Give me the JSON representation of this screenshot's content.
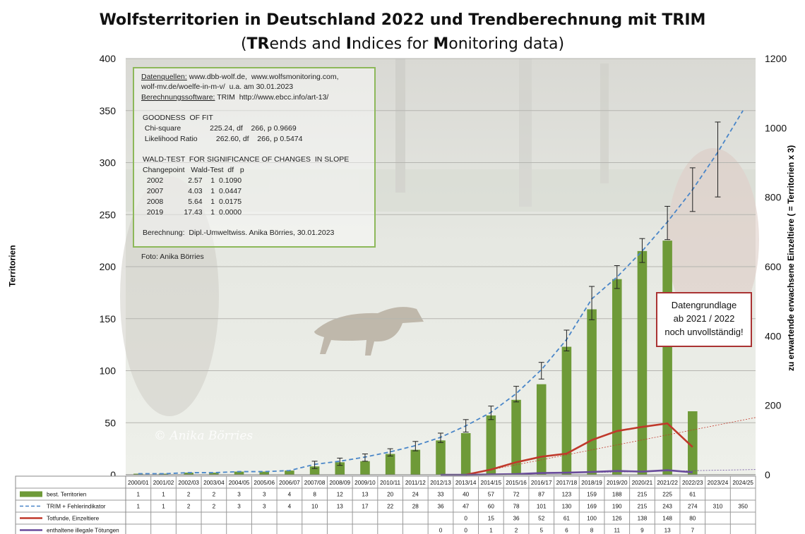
{
  "title_line1": "Wolfsterritorien in Deutschland 2022 und Trendberechnung mit TRIM",
  "title_line2": {
    "tr": "TR",
    "p1": "ends and ",
    "i": "I",
    "p2": "ndices for ",
    "m": "M",
    "p3": "onitoring data"
  },
  "ylabel_left": "Territorien",
  "ylabel_right": "zu erwartende erwachsene Einzeltiere ( = Territorien x 3)",
  "info": {
    "l1a": "Datenquellen:",
    "l1b": " www.dbb-wolf.de,  www.wolfsmonitoring.com,",
    "l2": "wolf-mv.de/woelfe-in-m-v/  u.a. am 30.01.2023",
    "l3a": "Berechnungssoftware:",
    "l3b": " TRIM  http://www.ebcc.info/art-13/",
    "gof": "GOODNESS  OF FIT",
    "chi": " Chi-square              225.24, df    266, p 0.9669",
    "lr": " Likelihood Ratio         262.60, df    266, p 0.5474",
    "wald": "WALD-TEST  FOR SIGNIFICANCE OF CHANGES  IN SLOPE",
    "wald_head": "Changepoint   Wald-Test  df   p",
    "w1": "  2002            2.57    1  0.1090",
    "w2": "  2007            4.03    1  0.0447",
    "w3": "  2008            5.64    1  0.0175",
    "w4": "  2019          17.43    1  0.0000",
    "calc": "Berechnung:  Dipl.-Umweltwiss. Anika Börries, 30.01.2023"
  },
  "foto": "Foto:  Anika Börries",
  "watermark": "© Anika Börries",
  "note": {
    "l1": "Datengrundlage",
    "l2": "ab 2021 / 2022",
    "l3": "noch unvollständig!"
  },
  "colors": {
    "bar": "#6e9a38",
    "trim": "#4a86c8",
    "dead": "#c0392b",
    "illegal": "#6a4c9c",
    "note_border": "#a33",
    "info_border": "#8db85a"
  },
  "chart_data": {
    "type": "bar",
    "categories": [
      "2000/01",
      "2001/02",
      "2002/03",
      "2003/04",
      "2004/05",
      "2005/06",
      "2006/07",
      "2007/08",
      "2008/09",
      "2009/10",
      "2010/11",
      "2011/12",
      "2012/13",
      "2013/14",
      "2014/15",
      "2015/16",
      "2016/17",
      "2017/18",
      "2018/19",
      "2019/20",
      "2020/21",
      "2021/22",
      "2022/23",
      "2023/24",
      "2024/25"
    ],
    "ylim": [
      0,
      400
    ],
    "y2lim": [
      0,
      1200
    ],
    "yticks": [
      0,
      50,
      100,
      150,
      200,
      250,
      300,
      350,
      400
    ],
    "y2ticks": [
      0,
      200,
      400,
      600,
      800,
      1000,
      1200
    ],
    "series": [
      {
        "name": "best. Territorien",
        "kind": "bar",
        "values": [
          1,
          1,
          2,
          2,
          3,
          3,
          4,
          8,
          12,
          13,
          20,
          24,
          33,
          40,
          57,
          72,
          87,
          123,
          159,
          188,
          215,
          225,
          61,
          null,
          null
        ]
      },
      {
        "name": "TRIM + Fehlerindikator",
        "kind": "dashed-line",
        "values": [
          1,
          1,
          2,
          2,
          3,
          3,
          4,
          10,
          13,
          17,
          22,
          28,
          36,
          47,
          60,
          78,
          101,
          130,
          169,
          190,
          215,
          243,
          274,
          310,
          350
        ],
        "error_low": [
          0,
          0,
          1,
          1,
          2,
          2,
          2,
          6,
          9,
          13,
          18,
          23,
          31,
          41,
          53,
          70,
          92,
          119,
          149,
          179,
          204,
          226,
          253,
          267,
          null
        ],
        "error_high": [
          2,
          2,
          3,
          3,
          4,
          4,
          6,
          13,
          16,
          20,
          25,
          32,
          40,
          53,
          66,
          85,
          108,
          139,
          181,
          201,
          227,
          258,
          295,
          339,
          null
        ]
      },
      {
        "name": "Totfunde, Einzeltiere",
        "kind": "line",
        "axis": "right",
        "values": [
          null,
          null,
          null,
          null,
          null,
          null,
          null,
          null,
          null,
          null,
          null,
          null,
          null,
          0,
          15,
          36,
          52,
          61,
          100,
          126,
          138,
          148,
          80,
          null,
          null
        ]
      },
      {
        "name": "enthaltene illegale Tötungen",
        "kind": "line",
        "axis": "right",
        "values": [
          null,
          null,
          null,
          null,
          null,
          null,
          null,
          null,
          null,
          null,
          null,
          null,
          0,
          0,
          1,
          2,
          5,
          6,
          8,
          11,
          9,
          13,
          7,
          null,
          null
        ]
      }
    ],
    "table_rows": [
      [
        "1",
        "1",
        "2",
        "2",
        "3",
        "3",
        "4",
        "8",
        "12",
        "13",
        "20",
        "24",
        "33",
        "40",
        "57",
        "72",
        "87",
        "123",
        "159",
        "188",
        "215",
        "225",
        "61",
        "",
        ""
      ],
      [
        "1",
        "1",
        "2",
        "2",
        "3",
        "3",
        "4",
        "10",
        "13",
        "17",
        "22",
        "28",
        "36",
        "47",
        "60",
        "78",
        "101",
        "130",
        "169",
        "190",
        "215",
        "243",
        "274",
        "310",
        "350"
      ],
      [
        "",
        "",
        "",
        "",
        "",
        "",
        "",
        "",
        "",
        "",
        "",
        "",
        "",
        "0",
        "15",
        "36",
        "52",
        "61",
        "100",
        "126",
        "138",
        "148",
        "80",
        "",
        ""
      ],
      [
        "",
        "",
        "",
        "",
        "",
        "",
        "",
        "",
        "",
        "",
        "",
        "",
        "0",
        "0",
        "1",
        "2",
        "5",
        "6",
        "8",
        "11",
        "9",
        "13",
        "7",
        "",
        ""
      ]
    ]
  }
}
